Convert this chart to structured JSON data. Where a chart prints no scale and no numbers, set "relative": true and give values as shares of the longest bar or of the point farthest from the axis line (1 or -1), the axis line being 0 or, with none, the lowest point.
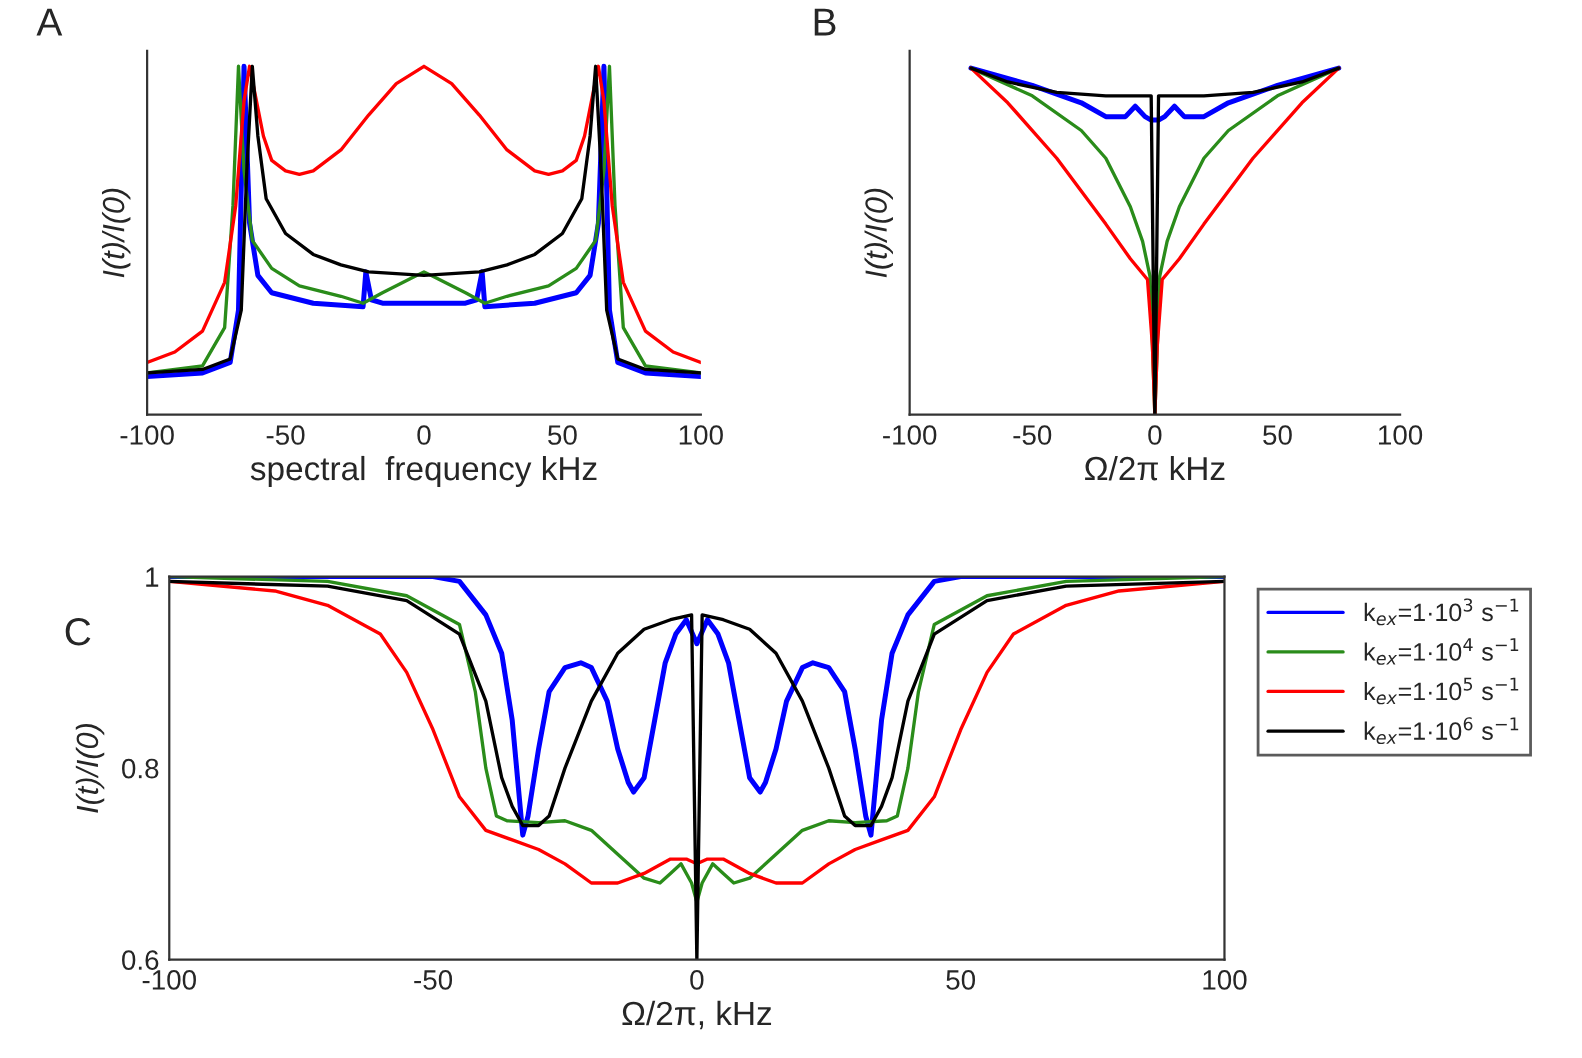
{
  "chart_data": [
    {
      "type": "line",
      "title": "A",
      "xlabel": "spectral  frequency kHz",
      "ylabel": "I(t)/I(0)",
      "relative": true,
      "xlim": [
        -100,
        100
      ],
      "xticks": [
        -100,
        -50,
        0,
        50,
        100
      ],
      "tick_labels": "x",
      "grid": false,
      "legend": false,
      "marker": "none",
      "line_style": "solid",
      "series": [
        {
          "color": "#0000ff",
          "x": [
            -100,
            -80,
            -70,
            -67,
            -65,
            -63,
            -60,
            -55,
            -40,
            -22,
            -21,
            -19,
            -15,
            0,
            15,
            19,
            21,
            22,
            40,
            55,
            60,
            63,
            65,
            67,
            70,
            80,
            100
          ],
          "values": [
            0.11,
            0.12,
            0.15,
            0.3,
            1.0,
            0.55,
            0.4,
            0.35,
            0.32,
            0.31,
            0.41,
            0.33,
            0.32,
            0.32,
            0.32,
            0.33,
            0.41,
            0.31,
            0.32,
            0.35,
            0.4,
            0.55,
            1.0,
            0.3,
            0.15,
            0.12,
            0.11
          ]
        },
        {
          "color": "#2a8c1a",
          "x": [
            -100,
            -80,
            -72,
            -69,
            -67,
            -65,
            -62,
            -55,
            -45,
            -30,
            -22,
            -15,
            -10,
            -5,
            0,
            5,
            10,
            15,
            22,
            30,
            45,
            55,
            62,
            65,
            67,
            69,
            72,
            80,
            100
          ],
          "values": [
            0.12,
            0.14,
            0.25,
            0.6,
            1.0,
            0.7,
            0.5,
            0.42,
            0.37,
            0.34,
            0.32,
            0.35,
            0.37,
            0.39,
            0.41,
            0.39,
            0.37,
            0.35,
            0.32,
            0.34,
            0.37,
            0.42,
            0.5,
            0.7,
            1.0,
            0.6,
            0.25,
            0.14,
            0.12
          ]
        },
        {
          "color": "#ff0000",
          "x": [
            -100,
            -90,
            -80,
            -72,
            -68,
            -65,
            -63,
            -61,
            -58,
            -55,
            -50,
            -45,
            -40,
            -30,
            -20,
            -10,
            0,
            10,
            20,
            30,
            40,
            45,
            50,
            55,
            58,
            61,
            63,
            65,
            68,
            72,
            80,
            90,
            100
          ],
          "values": [
            0.15,
            0.18,
            0.24,
            0.38,
            0.6,
            0.9,
            1.0,
            0.92,
            0.8,
            0.73,
            0.7,
            0.69,
            0.7,
            0.76,
            0.86,
            0.95,
            1.0,
            0.95,
            0.86,
            0.76,
            0.7,
            0.69,
            0.7,
            0.73,
            0.8,
            0.92,
            1.0,
            0.9,
            0.6,
            0.38,
            0.24,
            0.18,
            0.15
          ]
        },
        {
          "color": "#000000",
          "x": [
            -100,
            -80,
            -70,
            -66,
            -64,
            -62,
            -60,
            -57,
            -50,
            -40,
            -30,
            -20,
            0,
            20,
            30,
            40,
            50,
            57,
            60,
            62,
            64,
            66,
            70,
            80,
            100
          ],
          "values": [
            0.12,
            0.13,
            0.16,
            0.3,
            0.7,
            1.0,
            0.8,
            0.62,
            0.52,
            0.46,
            0.43,
            0.41,
            0.4,
            0.41,
            0.43,
            0.46,
            0.52,
            0.62,
            0.8,
            1.0,
            0.7,
            0.3,
            0.16,
            0.13,
            0.12
          ]
        }
      ]
    },
    {
      "type": "line",
      "title": "B",
      "xlabel": "Ω/2π kHz",
      "ylabel": "I(t)/I(0)",
      "relative": true,
      "xlim": [
        -100,
        100
      ],
      "xticks": [
        -100,
        -50,
        0,
        50,
        100
      ],
      "tick_labels": "x",
      "grid": false,
      "legend": false,
      "marker": "none",
      "line_style": "solid",
      "series": [
        {
          "color": "#0000ff",
          "x": [
            -75,
            -50,
            -30,
            -20,
            -12,
            -8,
            -4,
            -1.5,
            0,
            1.5,
            4,
            8,
            12,
            20,
            30,
            50,
            75
          ],
          "values": [
            1.0,
            0.95,
            0.9,
            0.86,
            0.86,
            0.89,
            0.86,
            0.85,
            null,
            0.85,
            0.86,
            0.89,
            0.86,
            0.86,
            0.9,
            0.95,
            1.0
          ]
        },
        {
          "color": "#2a8c1a",
          "x": [
            -75,
            -50,
            -30,
            -20,
            -10,
            -5,
            -2,
            0,
            2,
            5,
            10,
            20,
            30,
            50,
            75
          ],
          "values": [
            1.0,
            0.92,
            0.82,
            0.74,
            0.6,
            0.5,
            0.4,
            0,
            0.4,
            0.5,
            0.6,
            0.74,
            0.82,
            0.92,
            1.0
          ]
        },
        {
          "color": "#ff0000",
          "x": [
            -75,
            -60,
            -40,
            -20,
            -10,
            -3,
            -1,
            0,
            1,
            3,
            10,
            20,
            40,
            60,
            75
          ],
          "values": [
            1.0,
            0.9,
            0.74,
            0.55,
            0.45,
            0.39,
            0.2,
            0,
            0.2,
            0.39,
            0.45,
            0.55,
            0.74,
            0.9,
            1.0
          ]
        },
        {
          "color": "#000000",
          "x": [
            -75,
            -60,
            -40,
            -20,
            -1.5,
            -0.5,
            0,
            0.5,
            1.5,
            20,
            40,
            60,
            75
          ],
          "values": [
            1.0,
            0.96,
            0.93,
            0.92,
            0.92,
            0.3,
            0,
            0.3,
            0.92,
            0.92,
            0.93,
            0.96,
            1.0
          ]
        }
      ]
    },
    {
      "type": "line",
      "title": "C",
      "xlabel": "Ω/2π, kHz",
      "ylabel": "I(t)/I(0)",
      "xlim": [
        -100,
        100
      ],
      "xticks": [
        -100,
        -50,
        0,
        50,
        100
      ],
      "ylim": [
        0.6,
        1
      ],
      "yticks": [
        0.6,
        0.8,
        1
      ],
      "grid": false,
      "legend": "right",
      "marker": "none",
      "line_style": "solid",
      "series": [
        {
          "name": "k$_{ex}$=1·10$^{3}$ s$^{−1}$",
          "color": "#0000ff",
          "x": [
            -100,
            -50,
            -45,
            -40,
            -37,
            -35,
            -34,
            -33,
            -32,
            -30,
            -28,
            -25,
            -22,
            -20,
            -17,
            -15,
            -13,
            -12,
            -10,
            -8,
            -6,
            -4,
            -2,
            0,
            2,
            4,
            6,
            8,
            10,
            12,
            13,
            15,
            17,
            20,
            22,
            25,
            28,
            30,
            32,
            33,
            34,
            35,
            37,
            40,
            45,
            50,
            100
          ],
          "values": [
            1.0,
            1.0,
            0.995,
            0.96,
            0.92,
            0.85,
            0.79,
            0.73,
            0.75,
            0.82,
            0.88,
            0.905,
            0.91,
            0.905,
            0.87,
            0.82,
            0.785,
            0.775,
            0.79,
            0.85,
            0.91,
            0.94,
            0.955,
            0.93,
            0.955,
            0.94,
            0.91,
            0.85,
            0.79,
            0.775,
            0.785,
            0.82,
            0.87,
            0.905,
            0.91,
            0.905,
            0.88,
            0.82,
            0.75,
            0.73,
            0.79,
            0.85,
            0.92,
            0.96,
            0.995,
            1.0,
            1.0
          ]
        },
        {
          "name": "k$_{ex}$=1·10$^{4}$ s$^{−1}$",
          "color": "#2a8c1a",
          "x": [
            -100,
            -70,
            -55,
            -45,
            -42,
            -40,
            -38,
            -36,
            -30,
            -25,
            -20,
            -15,
            -10,
            -7,
            -5,
            -3,
            -1,
            0,
            1,
            3,
            5,
            7,
            10,
            15,
            20,
            25,
            30,
            36,
            38,
            40,
            42,
            45,
            55,
            70,
            100
          ],
          "values": [
            1.0,
            0.995,
            0.98,
            0.95,
            0.88,
            0.8,
            0.75,
            0.745,
            0.743,
            0.745,
            0.735,
            0.71,
            0.685,
            0.68,
            0.69,
            0.7,
            0.68,
            0.66,
            0.68,
            0.7,
            0.69,
            0.68,
            0.685,
            0.71,
            0.735,
            0.745,
            0.743,
            0.745,
            0.75,
            0.8,
            0.88,
            0.95,
            0.98,
            0.995,
            1.0
          ]
        },
        {
          "name": "k$_{ex}$=1·10$^{5}$ s$^{−1}$",
          "color": "#ff0000",
          "x": [
            -100,
            -80,
            -70,
            -60,
            -55,
            -50,
            -45,
            -40,
            -35,
            -30,
            -25,
            -20,
            -15,
            -10,
            -5,
            -2,
            0,
            2,
            5,
            10,
            15,
            20,
            25,
            30,
            35,
            40,
            45,
            50,
            55,
            60,
            70,
            80,
            100
          ],
          "values": [
            0.995,
            0.985,
            0.97,
            0.94,
            0.9,
            0.84,
            0.77,
            0.735,
            0.725,
            0.715,
            0.7,
            0.68,
            0.68,
            0.69,
            0.705,
            0.705,
            0.7,
            0.705,
            0.705,
            0.69,
            0.68,
            0.68,
            0.7,
            0.715,
            0.725,
            0.735,
            0.77,
            0.84,
            0.9,
            0.94,
            0.97,
            0.985,
            0.995
          ]
        },
        {
          "name": "k$_{ex}$=1·10$^{6}$ s$^{−1}$",
          "color": "#000000",
          "x": [
            -100,
            -70,
            -55,
            -45,
            -40,
            -37,
            -35,
            -33,
            -30,
            -28,
            -25,
            -20,
            -15,
            -10,
            -5,
            -1,
            0,
            1,
            5,
            10,
            15,
            20,
            25,
            28,
            30,
            33,
            35,
            37,
            40,
            45,
            55,
            70,
            100
          ],
          "values": [
            0.995,
            0.99,
            0.975,
            0.94,
            0.87,
            0.79,
            0.76,
            0.74,
            0.74,
            0.75,
            0.8,
            0.87,
            0.92,
            0.945,
            0.955,
            0.96,
            0.6,
            0.96,
            0.955,
            0.945,
            0.92,
            0.87,
            0.8,
            0.75,
            0.74,
            0.74,
            0.76,
            0.79,
            0.87,
            0.94,
            0.975,
            0.99,
            0.995
          ]
        }
      ]
    }
  ]
}
